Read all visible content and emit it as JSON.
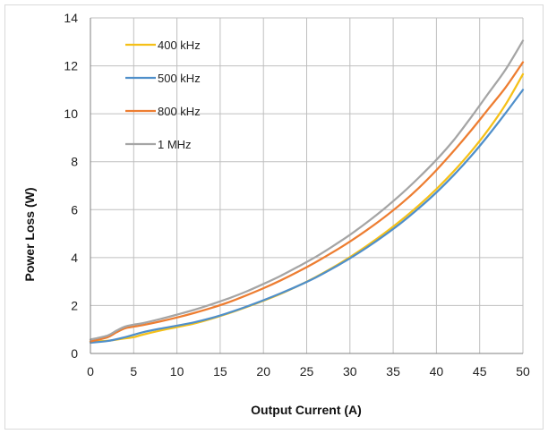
{
  "chart_data": {
    "type": "line",
    "xlabel": "Output Current (A)",
    "ylabel": "Power Loss (W)",
    "xlim": [
      0,
      50
    ],
    "ylim": [
      0,
      14
    ],
    "xticks": [
      0,
      5,
      10,
      15,
      20,
      25,
      30,
      35,
      40,
      45,
      50
    ],
    "yticks": [
      0,
      2,
      4,
      6,
      8,
      10,
      12,
      14
    ],
    "grid": true,
    "legend_position": "top-left",
    "series": [
      {
        "name": "400 kHz",
        "color": "#F5C018",
        "x": [
          0,
          2,
          4,
          5,
          6,
          8,
          10,
          12,
          14,
          16,
          18,
          20,
          22,
          24,
          26,
          28,
          30,
          32,
          34,
          36,
          38,
          40,
          42,
          44,
          46,
          48,
          50
        ],
        "y": [
          0.5,
          0.53,
          0.63,
          0.68,
          0.78,
          0.95,
          1.1,
          1.25,
          1.45,
          1.68,
          1.93,
          2.2,
          2.49,
          2.82,
          3.18,
          3.58,
          4.02,
          4.5,
          5.02,
          5.58,
          6.19,
          6.86,
          7.6,
          8.42,
          9.34,
          10.39,
          11.65
        ]
      },
      {
        "name": "500 kHz",
        "color": "#4F8FCA",
        "x": [
          0,
          2,
          4,
          5,
          6,
          8,
          10,
          12,
          14,
          16,
          18,
          20,
          22,
          24,
          26,
          28,
          30,
          32,
          34,
          36,
          38,
          40,
          42,
          44,
          46,
          48,
          50
        ],
        "y": [
          0.45,
          0.52,
          0.68,
          0.78,
          0.88,
          1.03,
          1.16,
          1.3,
          1.48,
          1.7,
          1.95,
          2.22,
          2.51,
          2.82,
          3.16,
          3.55,
          3.97,
          4.43,
          4.93,
          5.47,
          6.07,
          6.72,
          7.44,
          8.23,
          9.1,
          10.03,
          11.0
        ]
      },
      {
        "name": "800 kHz",
        "color": "#ED7D31",
        "x": [
          0,
          2,
          3,
          4,
          5,
          6,
          8,
          10,
          12,
          14,
          16,
          18,
          20,
          22,
          24,
          26,
          28,
          30,
          32,
          34,
          36,
          38,
          40,
          42,
          44,
          46,
          48,
          50
        ],
        "y": [
          0.5,
          0.68,
          0.88,
          1.05,
          1.12,
          1.18,
          1.33,
          1.5,
          1.69,
          1.9,
          2.14,
          2.42,
          2.72,
          3.05,
          3.41,
          3.8,
          4.22,
          4.67,
          5.16,
          5.69,
          6.27,
          6.92,
          7.65,
          8.45,
          9.3,
          10.2,
          11.1,
          12.15
        ]
      },
      {
        "name": "1 MHz",
        "color": "#A5A5A5",
        "x": [
          0,
          2,
          3,
          4,
          5,
          6,
          8,
          10,
          12,
          14,
          16,
          18,
          20,
          22,
          24,
          26,
          28,
          30,
          32,
          34,
          36,
          38,
          40,
          42,
          44,
          46,
          48,
          50
        ],
        "y": [
          0.58,
          0.75,
          0.95,
          1.12,
          1.2,
          1.26,
          1.43,
          1.62,
          1.82,
          2.05,
          2.3,
          2.58,
          2.9,
          3.24,
          3.62,
          4.02,
          4.47,
          4.95,
          5.48,
          6.05,
          6.67,
          7.35,
          8.08,
          8.9,
          9.85,
          10.85,
          11.85,
          13.05
        ]
      }
    ]
  }
}
